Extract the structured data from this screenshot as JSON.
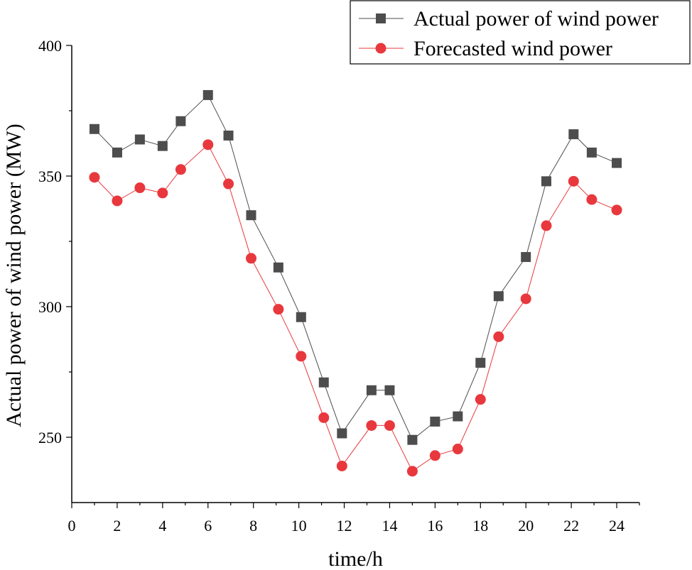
{
  "chart_data": {
    "type": "line",
    "title": "",
    "xlabel": "time/h",
    "ylabel": "Actual power of wind power (MW)",
    "xlim": [
      0,
      25
    ],
    "ylim": [
      225,
      400
    ],
    "xticks": [
      0,
      2,
      4,
      6,
      8,
      10,
      12,
      14,
      16,
      18,
      20,
      22,
      24
    ],
    "yticks": [
      250,
      300,
      350,
      400
    ],
    "legend_position": "top-right",
    "series": [
      {
        "name": "Actual power of wind power",
        "marker": "square",
        "color": "#4d4d4d",
        "x": [
          1,
          2,
          3,
          4,
          4.8,
          6,
          6.9,
          7.9,
          9.1,
          10.1,
          11.1,
          11.9,
          13.2,
          14,
          15,
          16,
          17,
          18,
          18.8,
          20,
          20.9,
          22.1,
          22.9,
          24
        ],
        "y": [
          368,
          359,
          364,
          361.5,
          371,
          381,
          365.5,
          335,
          315,
          296,
          271,
          251.5,
          268,
          268,
          249,
          256,
          258,
          278.5,
          304,
          319,
          348,
          366,
          359,
          355
        ]
      },
      {
        "name": "Forecasted wind power",
        "marker": "circle",
        "color": "#e8383d",
        "x": [
          1,
          2,
          3,
          4,
          4.8,
          6,
          6.9,
          7.9,
          9.1,
          10.1,
          11.1,
          11.9,
          13.2,
          14,
          15,
          16,
          17,
          18,
          18.8,
          20,
          20.9,
          22.1,
          22.9,
          24
        ],
        "y": [
          349.5,
          340.5,
          345.5,
          343.5,
          352.5,
          362,
          347,
          318.5,
          299,
          281,
          257.5,
          239,
          254.5,
          254.5,
          237,
          243,
          245.5,
          264.5,
          288.5,
          303,
          331,
          348,
          341,
          337
        ]
      }
    ]
  }
}
